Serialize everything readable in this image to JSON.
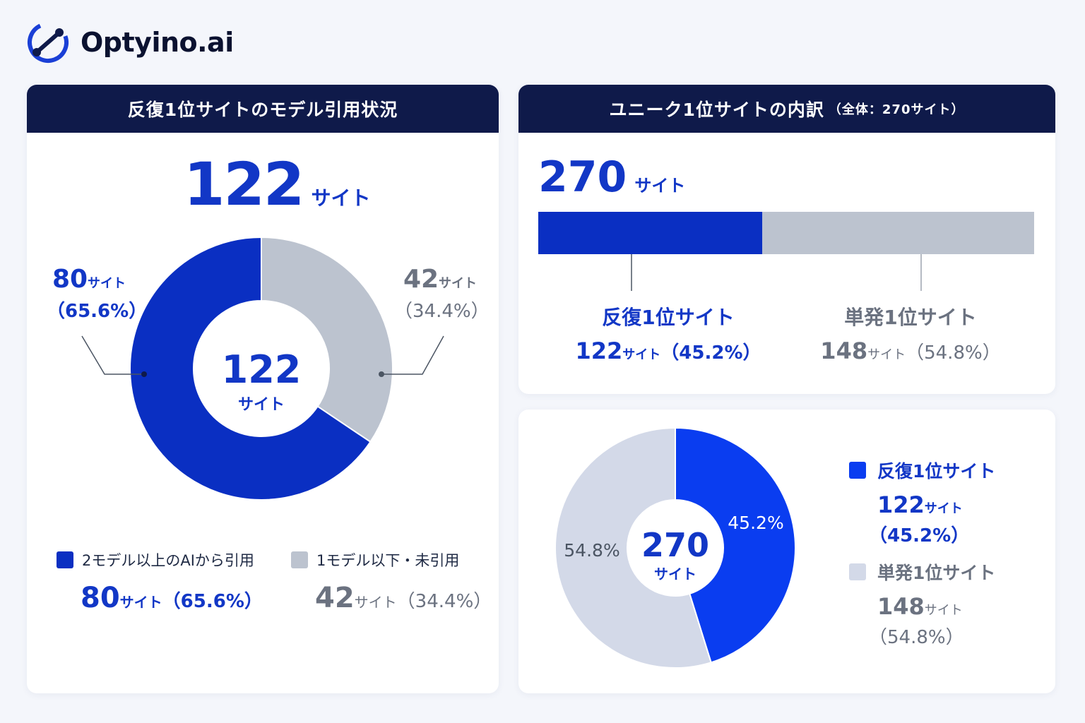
{
  "brand": {
    "name": "Optyino.ai"
  },
  "colors": {
    "navy": "#0f1a4a",
    "blue_dark": "#0a2fc2",
    "blue_bright": "#0a3df0",
    "gray": "#bcc3cf",
    "gray_light": "#d3d9e8"
  },
  "left_card": {
    "title": "反復1位サイトのモデル引用状況",
    "total_value": "122",
    "total_unit": "サイト",
    "center_value": "122",
    "center_unit": "サイト",
    "callout_left": {
      "value": "80",
      "unit": "サイト",
      "pct": "（65.6%）"
    },
    "callout_right": {
      "value": "42",
      "unit": "サイト",
      "pct": "（34.4%）"
    },
    "legend": [
      {
        "label": "2モデル以上のAIから引用",
        "value": "80",
        "unit": "サイト",
        "pct": "（65.6%）"
      },
      {
        "label": "1モデル以下・未引用",
        "value": "42",
        "unit": "サイト",
        "pct": "（34.4%）"
      }
    ]
  },
  "right_top_card": {
    "title": "ユニーク1位サイトの内訳",
    "title_sub": "（全体：270サイト）",
    "total_value": "270",
    "total_unit": "サイト",
    "labels": [
      {
        "name": "反復1位サイト",
        "value": "122",
        "unit": "サイト",
        "pct": "（45.2%）"
      },
      {
        "name": "単発1位サイト",
        "value": "148",
        "unit": "サイト",
        "pct": "（54.8%）"
      }
    ]
  },
  "right_bottom_card": {
    "center_value": "270",
    "center_unit": "サイト",
    "slice_labels": [
      "45.2%",
      "54.8%"
    ],
    "legend": [
      {
        "name": "反復1位サイト",
        "value": "122",
        "unit": "サイト",
        "pct": "（45.2%）"
      },
      {
        "name": "単発1位サイト",
        "value": "148",
        "unit": "サイト",
        "pct": "（54.8%）"
      }
    ]
  },
  "chart_data": [
    {
      "type": "pie",
      "title": "反復1位サイトのモデル引用状況",
      "total": 122,
      "series": [
        {
          "name": "2モデル以上のAIから引用",
          "value": 80,
          "percent": 65.6
        },
        {
          "name": "1モデル以下・未引用",
          "value": 42,
          "percent": 34.4
        }
      ]
    },
    {
      "type": "bar",
      "title": "ユニーク1位サイトの内訳",
      "total": 270,
      "categories": [
        "反復1位サイト",
        "単発1位サイト"
      ],
      "values": [
        122,
        148
      ],
      "percents": [
        45.2,
        54.8
      ]
    },
    {
      "type": "pie",
      "total": 270,
      "series": [
        {
          "name": "反復1位サイト",
          "value": 122,
          "percent": 45.2
        },
        {
          "name": "単発1位サイト",
          "value": 148,
          "percent": 54.8
        }
      ]
    }
  ]
}
